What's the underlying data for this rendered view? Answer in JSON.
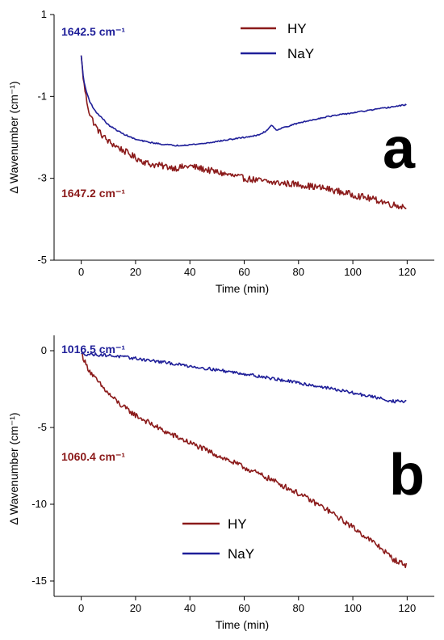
{
  "chart_data": [
    {
      "type": "line",
      "panel_label": "a",
      "xlabel": "Time (min)",
      "ylabel": "Δ Wavenumber (cm⁻¹)",
      "xlim": [
        -10,
        130
      ],
      "ylim": [
        -5,
        1
      ],
      "xticks": [
        0,
        20,
        40,
        60,
        80,
        100,
        120
      ],
      "yticks": [
        1,
        -1,
        -3,
        -5
      ],
      "legend_position": "top-right",
      "annotations": [
        {
          "text": "1642.5 cm⁻¹",
          "color": "#1f1f99",
          "series": "NaY"
        },
        {
          "text": "1647.2 cm⁻¹",
          "color": "#8b1a1a",
          "series": "HY"
        }
      ],
      "series": [
        {
          "name": "HY",
          "color": "#8b1a1a",
          "noise": 0.08,
          "x": [
            0,
            0.5,
            1,
            2,
            3,
            5,
            7,
            10,
            15,
            20,
            25,
            30,
            35,
            40,
            50,
            60,
            70,
            80,
            90,
            100,
            110,
            115,
            120
          ],
          "y": [
            0,
            -0.4,
            -0.7,
            -1.1,
            -1.4,
            -1.7,
            -1.9,
            -2.1,
            -2.3,
            -2.5,
            -2.65,
            -2.7,
            -2.75,
            -2.7,
            -2.85,
            -3.0,
            -3.1,
            -3.15,
            -3.25,
            -3.4,
            -3.55,
            -3.65,
            -3.7
          ]
        },
        {
          "name": "NaY",
          "color": "#1f1f99",
          "noise": 0.015,
          "x": [
            0,
            0.5,
            1,
            2,
            3,
            5,
            8,
            10,
            15,
            20,
            25,
            30,
            35,
            40,
            45,
            50,
            55,
            60,
            65,
            68,
            70,
            72,
            75,
            80,
            90,
            100,
            110,
            120
          ],
          "y": [
            0,
            -0.35,
            -0.65,
            -0.9,
            -1.1,
            -1.35,
            -1.55,
            -1.7,
            -1.9,
            -2.05,
            -2.12,
            -2.17,
            -2.2,
            -2.18,
            -2.15,
            -2.1,
            -2.05,
            -2.0,
            -1.95,
            -1.85,
            -1.7,
            -1.82,
            -1.75,
            -1.65,
            -1.5,
            -1.4,
            -1.3,
            -1.2
          ]
        }
      ]
    },
    {
      "type": "line",
      "panel_label": "b",
      "xlabel": "Time (min)",
      "ylabel": "Δ Wavenumber (cm⁻¹)",
      "xlim": [
        -10,
        130
      ],
      "ylim": [
        -16,
        1
      ],
      "xticks": [
        0,
        20,
        40,
        60,
        80,
        100,
        120
      ],
      "yticks": [
        0,
        -5,
        -10,
        -15
      ],
      "legend_position": "bottom-center",
      "annotations": [
        {
          "text": "1016.5 cm⁻¹",
          "color": "#1f1f99",
          "series": "NaY"
        },
        {
          "text": "1060.4 cm⁻¹",
          "color": "#8b1a1a",
          "series": "HY"
        }
      ],
      "series": [
        {
          "name": "HY",
          "color": "#8b1a1a",
          "noise": 0.18,
          "x": [
            0,
            1,
            2,
            5,
            10,
            15,
            20,
            30,
            40,
            50,
            60,
            70,
            80,
            90,
            100,
            110,
            115,
            120
          ],
          "y": [
            0,
            -0.6,
            -1.0,
            -1.8,
            -2.8,
            -3.6,
            -4.2,
            -5.2,
            -6.0,
            -6.8,
            -7.6,
            -8.4,
            -9.3,
            -10.3,
            -11.5,
            -12.8,
            -13.6,
            -14.0
          ]
        },
        {
          "name": "NaY",
          "color": "#1f1f99",
          "noise": 0.1,
          "x": [
            0,
            10,
            20,
            30,
            40,
            50,
            60,
            70,
            80,
            90,
            100,
            110,
            115,
            120
          ],
          "y": [
            -0.2,
            -0.3,
            -0.5,
            -0.75,
            -1.0,
            -1.25,
            -1.5,
            -1.8,
            -2.1,
            -2.4,
            -2.75,
            -3.1,
            -3.3,
            -3.3
          ]
        }
      ]
    }
  ]
}
